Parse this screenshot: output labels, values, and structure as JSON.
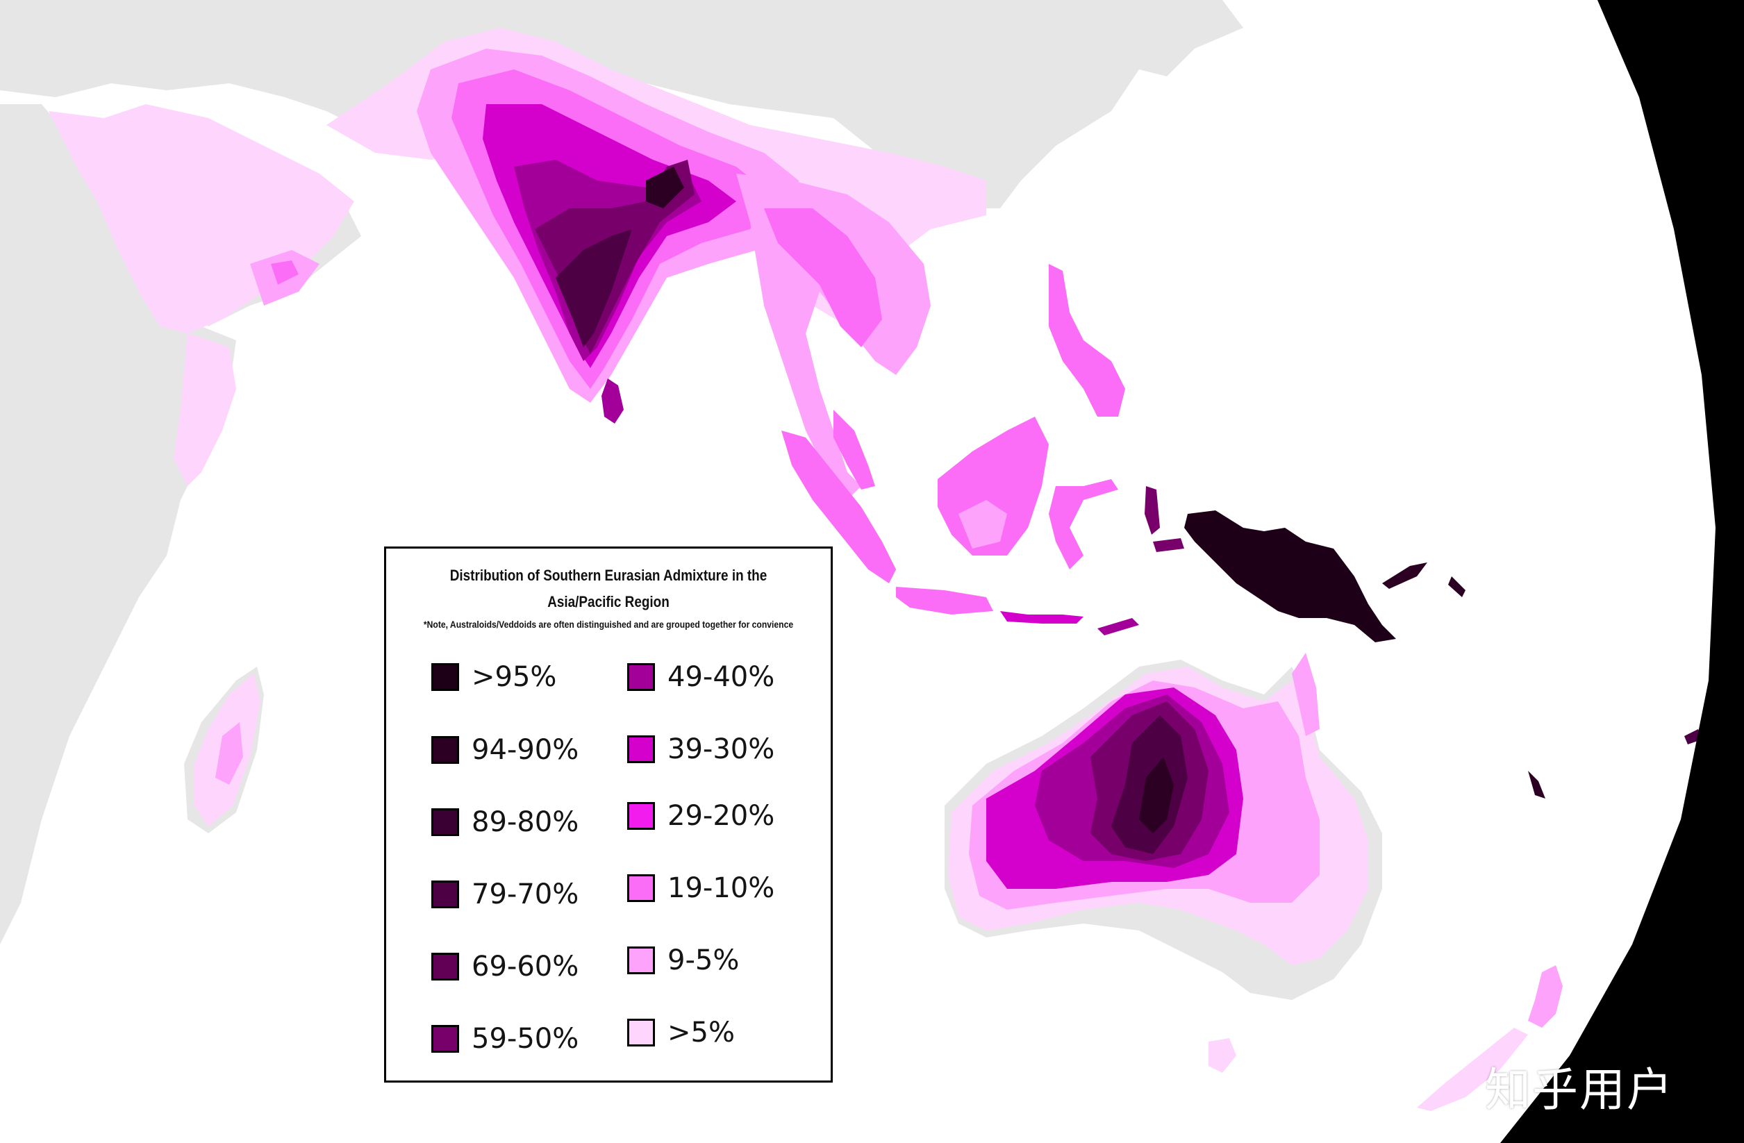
{
  "map": {
    "colors": {
      "ocean": "#ffffff",
      "land_no_data": "#e6e6e6",
      "outer_space": "#000000"
    },
    "regions": [
      {
        "name": "India",
        "level": ">95%"
      },
      {
        "name": "New Guinea",
        "level": ">95%"
      },
      {
        "name": "Australia",
        "level": "79-70%"
      }
    ]
  },
  "legend": {
    "title_line1": "Distribution of Southern Eurasian Admixture in the",
    "title_line2": "Asia/Pacific Region",
    "note": "*Note, Australoids/Veddoids are often distinguished and are grouped together for convience",
    "items": [
      {
        "label": ">95%",
        "color": "#1d0017"
      },
      {
        "label": "94-90%",
        "color": "#2b0023"
      },
      {
        "label": "89-80%",
        "color": "#3b0033"
      },
      {
        "label": "79-70%",
        "color": "#4d0043"
      },
      {
        "label": "69-60%",
        "color": "#620056"
      },
      {
        "label": "59-50%",
        "color": "#78006a"
      },
      {
        "label": "49-40%",
        "color": "#a3009a"
      },
      {
        "label": "39-30%",
        "color": "#d400cc"
      },
      {
        "label": "29-20%",
        "color": "#f11ced"
      },
      {
        "label": "19-10%",
        "color": "#fb6cf7"
      },
      {
        "label": "9-5%",
        "color": "#fda3fb"
      },
      {
        "label": ">5%",
        "color": "#fed5fd"
      }
    ]
  },
  "watermark": "知乎用户"
}
